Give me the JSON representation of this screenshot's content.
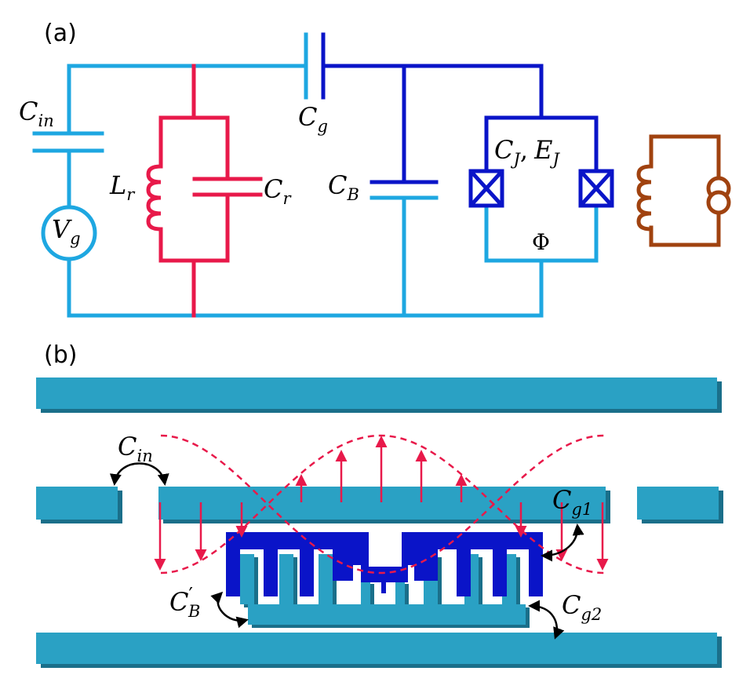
{
  "panels": {
    "a": {
      "tag": "(a)"
    },
    "b": {
      "tag": "(b)"
    }
  },
  "circuit": {
    "c_in": {
      "main": "C",
      "sub": "in"
    },
    "v_g": {
      "main": "V",
      "sub": "g"
    },
    "l_r": {
      "main": "L",
      "sub": "r"
    },
    "c_r": {
      "main": "C",
      "sub": "r"
    },
    "c_g": {
      "main": "C",
      "sub": "g"
    },
    "c_b": {
      "main": "C",
      "sub": "B"
    },
    "c_j": {
      "main": "C",
      "sub": "J"
    },
    "comma": ",",
    "e_j": {
      "main": "E",
      "sub": "J"
    },
    "phi": "Φ"
  },
  "layout_b": {
    "c_in": {
      "main": "C",
      "sub": "in"
    },
    "c_g1": {
      "main": "C",
      "sub": "g1"
    },
    "c_b_prime": {
      "main": "C",
      "prime": "′",
      "sub": "B"
    },
    "c_g2": {
      "main": "C",
      "sub": "g2"
    }
  },
  "colors": {
    "light_blue": "#1ea7e1",
    "dark_blue": "#0a14c8",
    "red": "#e8194a",
    "brown": "#a0420f",
    "teal": "#2aa1c4",
    "teal_shadow": "#1a6f8a",
    "arrow": "#e8194a"
  },
  "icons": {
    "junctions": "josephson-junction-icon",
    "source": "voltage-source-icon",
    "current_source": "current-source-icon"
  }
}
